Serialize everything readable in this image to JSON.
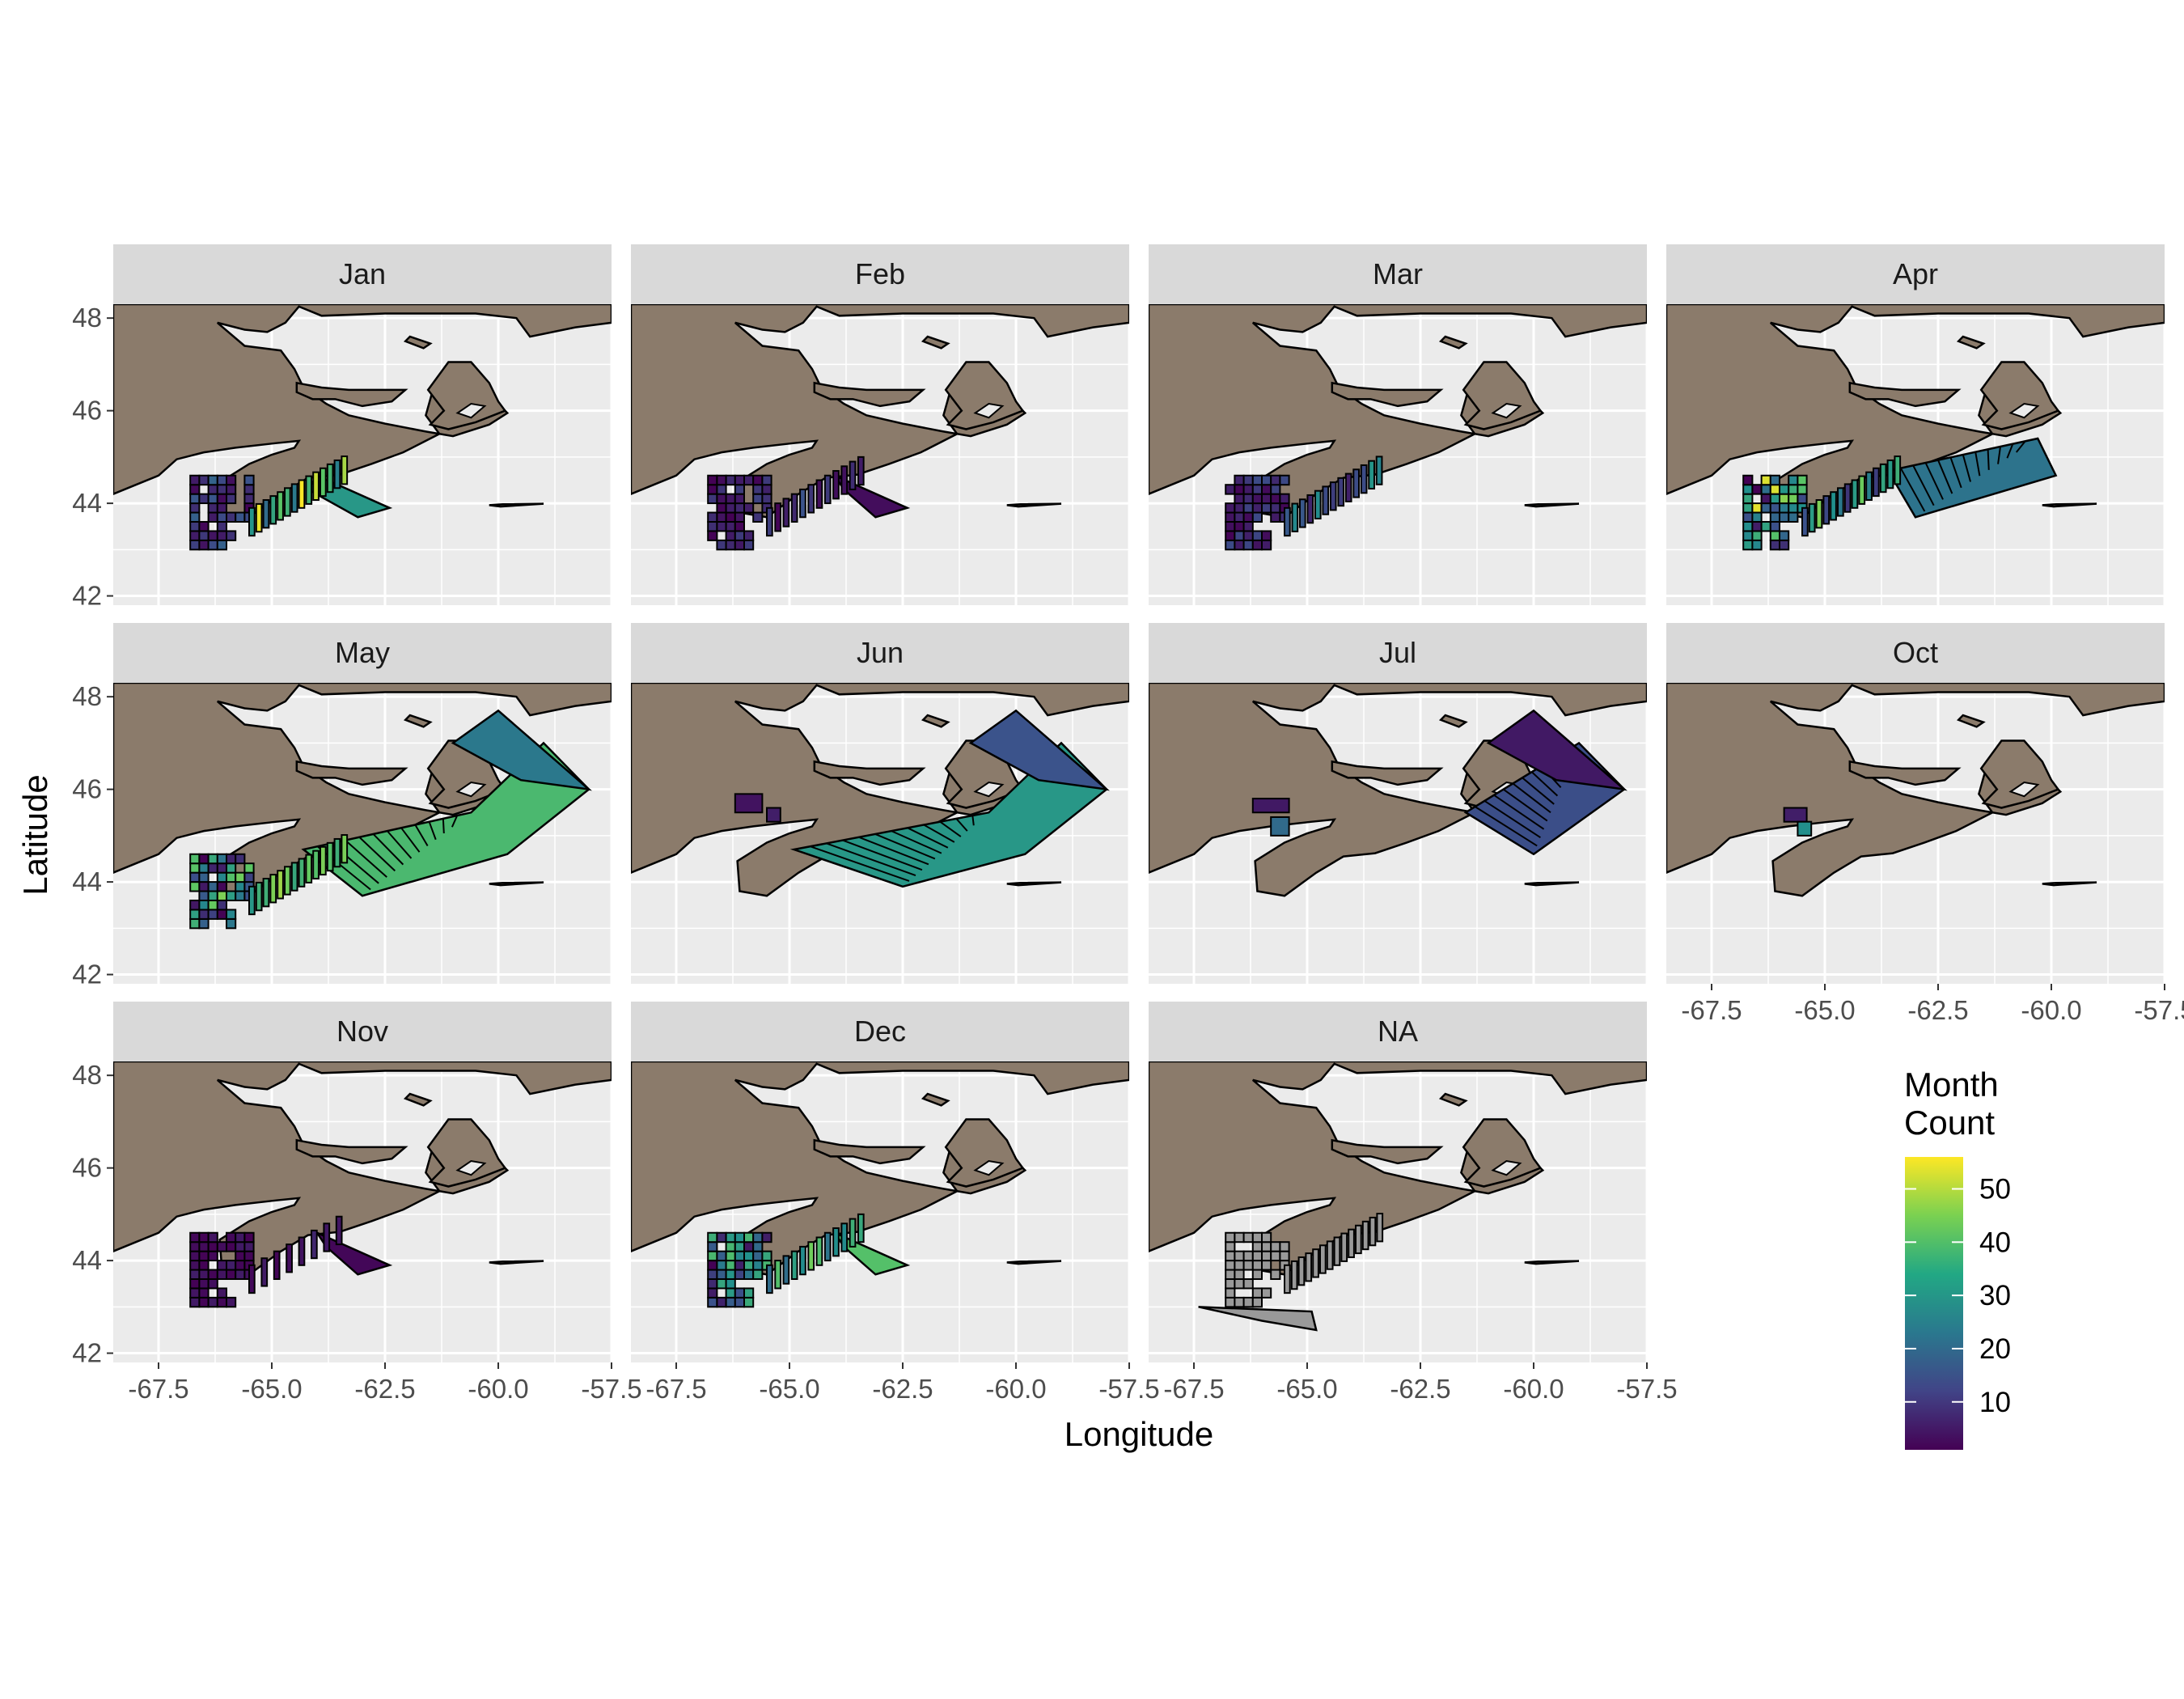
{
  "figure": {
    "x_axis_title": "Longitude",
    "y_axis_title": "Latitude",
    "legend_title_line1": "Month",
    "legend_title_line2": "Count",
    "legend_breaks": [
      10,
      20,
      30,
      40,
      50
    ],
    "legend_range": [
      1,
      56
    ],
    "colorscale": [
      "#440154",
      "#3b528b",
      "#21918c",
      "#5ec962",
      "#fde725"
    ],
    "na_fill": "#999999",
    "land_fill": "#8b7b6b",
    "panel_bg": "#ebebeb",
    "strip_bg": "#d9d9d9"
  },
  "chart_data": {
    "type": "map",
    "facets": [
      "Jan",
      "Feb",
      "Mar",
      "Apr",
      "May",
      "Jun",
      "Jul",
      "Oct",
      "Nov",
      "Dec",
      "NA"
    ],
    "xlim": [
      -68.5,
      -57.5
    ],
    "ylim": [
      41.8,
      48.3
    ],
    "x_ticks": [
      -67.5,
      -65.0,
      -62.5,
      -60.0,
      -57.5
    ],
    "x_tick_labels": [
      "-67.5",
      "-65.0",
      "-62.5",
      "-60.0",
      "-57.5"
    ],
    "y_ticks": [
      42,
      44,
      46,
      48
    ],
    "y_tick_labels": [
      "42",
      "44",
      "46",
      "48"
    ],
    "fill_variable": "Month Count"
  }
}
